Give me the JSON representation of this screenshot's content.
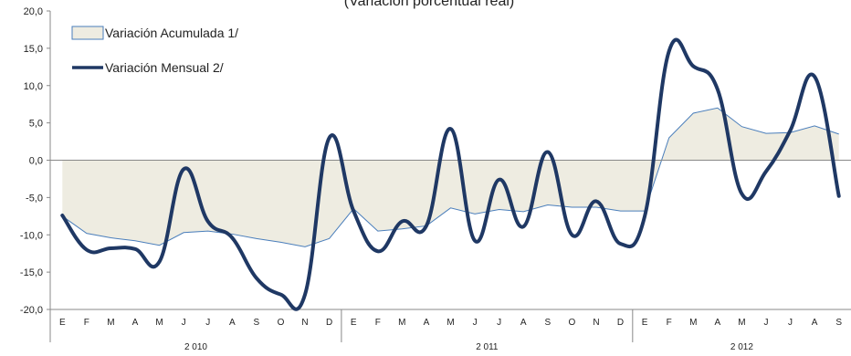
{
  "chart_data": {
    "type": "area",
    "title": "(Variación porcentual real)",
    "categories": [
      "E",
      "F",
      "M",
      "A",
      "M",
      "J",
      "J",
      "A",
      "S",
      "O",
      "N",
      "D",
      "E",
      "F",
      "M",
      "A",
      "M",
      "J",
      "J",
      "A",
      "S",
      "O",
      "N",
      "D",
      "E",
      "F",
      "M",
      "A",
      "M",
      "J",
      "J",
      "A",
      "S"
    ],
    "year_groups": [
      {
        "label": "2 010",
        "count": 12
      },
      {
        "label": "2 011",
        "count": 12
      },
      {
        "label": "2 012",
        "count": 9
      }
    ],
    "ylim": [
      -20,
      20
    ],
    "yticks": [
      "-20,0",
      "-15,0",
      "-10,0",
      "-5,0",
      "0,0",
      "5,0",
      "10,0",
      "15,0",
      "20,0"
    ],
    "ytick_values": [
      -20,
      -15,
      -10,
      -5,
      0,
      5,
      10,
      15,
      20
    ],
    "series": [
      {
        "name": "Variación Acumulada 1/",
        "kind": "area",
        "color": "#4a7ebb",
        "fill": "#eeece1",
        "values": [
          -7.5,
          -9.8,
          -10.4,
          -10.8,
          -11.4,
          -9.7,
          -9.5,
          -9.9,
          -10.5,
          -11.0,
          -11.6,
          -10.5,
          -6.5,
          -9.5,
          -9.2,
          -8.8,
          -6.4,
          -7.2,
          -6.6,
          -6.9,
          -6.0,
          -6.3,
          -6.3,
          -6.8,
          -6.8,
          3.0,
          6.3,
          7.0,
          4.5,
          3.6,
          3.7,
          4.6,
          3.5
        ]
      },
      {
        "name": "Variación Mensual 2/",
        "kind": "line",
        "color": "#1f3864",
        "values": [
          -7.4,
          -12.0,
          -11.8,
          -11.9,
          -13.6,
          -1.2,
          -8.2,
          -10.4,
          -15.8,
          -18.0,
          -18.0,
          3.0,
          -6.8,
          -12.2,
          -8.2,
          -8.8,
          4.2,
          -10.8,
          -2.6,
          -8.9,
          1.1,
          -10.0,
          -5.5,
          -11.2,
          -7.5,
          14.6,
          12.6,
          9.5,
          -4.5,
          -1.5,
          4.0,
          11.2,
          -4.8
        ]
      }
    ]
  }
}
